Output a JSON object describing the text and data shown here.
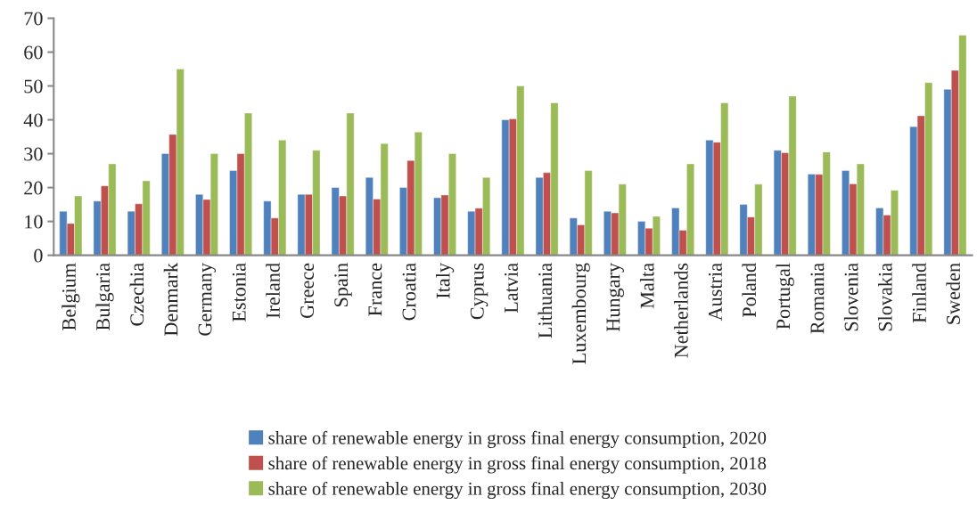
{
  "chart_data": {
    "type": "bar",
    "categories": [
      "Belgium",
      "Bulgaria",
      "Czechia",
      "Denmark",
      "Germany",
      "Estonia",
      "Ireland",
      "Greece",
      "Spain",
      "France",
      "Croatia",
      "Italy",
      "Cyprus",
      "Latvia",
      "Lithuania",
      "Luxembourg",
      "Hungary",
      "Malta",
      "Netherlands",
      "Austria",
      "Poland",
      "Portugal",
      "Romania",
      "Slovenia",
      "Slovakia",
      "Finland",
      "Sweden"
    ],
    "series": [
      {
        "name": "share of renewable energy in gross final energy consumption, 2020",
        "color": "#4f81bd",
        "values": [
          13,
          16,
          13,
          30,
          18,
          25,
          16,
          18,
          20,
          23,
          20,
          17,
          13,
          40,
          23,
          11,
          13,
          10,
          14,
          34,
          15,
          31,
          24,
          25,
          14,
          38,
          49
        ]
      },
      {
        "name": "share of renewable energy in gross final energy consumption, 2018",
        "color": "#c0504d",
        "values": [
          9.4,
          20.5,
          15.2,
          35.7,
          16.5,
          30,
          11,
          18,
          17.5,
          16.6,
          28,
          17.8,
          13.9,
          40.3,
          24.4,
          9,
          12.5,
          8,
          7.4,
          33.4,
          11.3,
          30.3,
          23.9,
          21.1,
          11.9,
          41.2,
          54.6
        ]
      },
      {
        "name": "share of renewable energy in gross final energy consumption, 2030",
        "color": "#9bbb59",
        "values": [
          17.5,
          27,
          22,
          55,
          30,
          42,
          34,
          31,
          42,
          33,
          36.4,
          30,
          23,
          50,
          45,
          25,
          21,
          11.5,
          27,
          45,
          21,
          47,
          30.5,
          27,
          19.2,
          51,
          65
        ]
      }
    ],
    "ylim": [
      0,
      70
    ],
    "yticks": [
      0,
      10,
      20,
      30,
      40,
      50,
      60,
      70
    ],
    "grid": false,
    "legend": "bottom"
  }
}
